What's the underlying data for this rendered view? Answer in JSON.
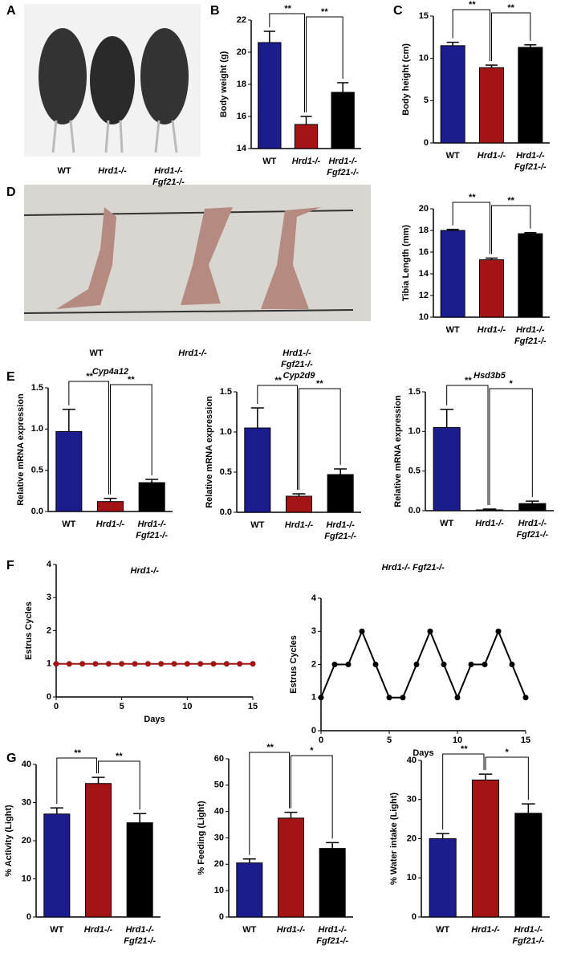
{
  "panel_labels": [
    "A",
    "B",
    "C",
    "D",
    "E",
    "F",
    "G"
  ],
  "photo_a": {
    "labels": [
      "WT",
      "Hrd1-/-",
      [
        "Hrd1-/-",
        "Fgf21-/-"
      ]
    ]
  },
  "photo_d": {
    "labels": [
      "WT",
      "Hrd1-/-",
      [
        "Hrd1-/-",
        "Fgf21-/-"
      ]
    ]
  },
  "chart_data": [
    {
      "type": "bar",
      "y_label": "Body weight  (g)",
      "categories": [
        "WT",
        "Hrd1-/-",
        [
          "Hrd1-/-",
          "Fgf21-/-"
        ]
      ],
      "values": [
        20.6,
        15.5,
        17.5
      ],
      "errors": [
        0.7,
        0.5,
        0.6
      ],
      "colors": [
        "#1c1c8f",
        "#a31515",
        "#000000"
      ],
      "ylim": [
        14,
        22
      ],
      "yticks": [
        14,
        16,
        18,
        20,
        22
      ],
      "significance": [
        "**",
        "**"
      ]
    },
    {
      "type": "bar",
      "y_label": "Body height (cm)",
      "categories": [
        "WT",
        "Hrd1-/-",
        [
          "Hrd1-/-",
          "Fgf21-/-"
        ]
      ],
      "values": [
        11.5,
        8.9,
        11.3
      ],
      "errors": [
        0.4,
        0.3,
        0.3
      ],
      "colors": [
        "#1c1c8f",
        "#a31515",
        "#000000"
      ],
      "ylim": [
        0,
        15
      ],
      "yticks": [
        0,
        5,
        10,
        15
      ],
      "significance": [
        "**",
        "**"
      ]
    },
    {
      "type": "bar",
      "y_label": "Tibia Length (mm)",
      "categories": [
        "WT",
        "Hrd1-/-",
        [
          "Hrd1-/-",
          "Fgf21-/-"
        ]
      ],
      "values": [
        18.0,
        15.3,
        17.7
      ],
      "errors": [
        0.1,
        0.15,
        0.1
      ],
      "colors": [
        "#1c1c8f",
        "#a31515",
        "#000000"
      ],
      "ylim": [
        10,
        20
      ],
      "yticks": [
        10,
        12,
        14,
        16,
        18,
        20
      ],
      "significance": [
        "**",
        "**"
      ]
    },
    {
      "type": "bar",
      "title": "Cyp4a12",
      "y_label": "Relative mRNA expression",
      "categories": [
        "WT",
        "Hrd1-/-",
        [
          "Hrd1-/-",
          "Fgf21-/-"
        ]
      ],
      "values": [
        0.97,
        0.12,
        0.35
      ],
      "errors": [
        0.27,
        0.04,
        0.04
      ],
      "colors": [
        "#1c1c8f",
        "#a31515",
        "#000000"
      ],
      "ylim": [
        0,
        1.5
      ],
      "yticks": [
        {
          "value": 0,
          "label": "0.0"
        },
        0.5,
        {
          "value": 1,
          "label": "1.0"
        },
        1.5
      ],
      "significance": [
        "**",
        "**"
      ]
    },
    {
      "type": "bar",
      "title": "Cyp2d9",
      "y_label": "Relative mRNA expression",
      "categories": [
        "WT",
        "Hrd1-/-",
        [
          "Hrd1-/-",
          "Fgf21-/-"
        ]
      ],
      "values": [
        1.05,
        0.2,
        0.47
      ],
      "errors": [
        0.25,
        0.03,
        0.07
      ],
      "colors": [
        "#1c1c8f",
        "#a31515",
        "#000000"
      ],
      "ylim": [
        0,
        1.5
      ],
      "yticks": [
        {
          "value": 0,
          "label": "0.0"
        },
        0.5,
        {
          "value": 1,
          "label": "1.0"
        },
        1.5
      ],
      "significance": [
        "**",
        "**"
      ]
    },
    {
      "type": "bar",
      "title": "Hsd3b5",
      "y_label": "Relative mRNA expression",
      "categories": [
        "WT",
        "Hrd1-/-",
        [
          "Hrd1-/-",
          "Fgf21-/-"
        ]
      ],
      "values": [
        1.05,
        0.01,
        0.09
      ],
      "errors": [
        0.23,
        0.01,
        0.03
      ],
      "colors": [
        "#1c1c8f",
        "#a31515",
        "#000000"
      ],
      "ylim": [
        0,
        1.5
      ],
      "yticks": [
        {
          "value": 0,
          "label": "0.0"
        },
        0.5,
        {
          "value": 1,
          "label": "1.0"
        },
        1.5
      ],
      "significance": [
        "**",
        "*"
      ]
    },
    {
      "type": "line",
      "title": "Hrd1-/-",
      "y_label": "Estrus Cycles",
      "x_label": "Days",
      "x": [
        0,
        1,
        2,
        3,
        4,
        5,
        6,
        7,
        8,
        9,
        10,
        11,
        12,
        13,
        14,
        15
      ],
      "values": [
        1,
        1,
        1,
        1,
        1,
        1,
        1,
        1,
        1,
        1,
        1,
        1,
        1,
        1,
        1,
        1
      ],
      "color": "#a31515",
      "xlim": [
        0,
        15
      ],
      "xticks": [
        0,
        5,
        10,
        15
      ],
      "ylim": [
        0,
        4
      ],
      "yticks": [
        0,
        1,
        2,
        3,
        4
      ]
    },
    {
      "type": "line",
      "title": "Hrd1-/- Fgf21-/-",
      "y_label": "Estrus Cycles",
      "x_label": "Days",
      "x": [
        0,
        1,
        2,
        3,
        4,
        5,
        6,
        7,
        8,
        9,
        10,
        11,
        12,
        13,
        14,
        15
      ],
      "values": [
        1,
        2,
        2,
        3,
        2,
        1,
        1,
        2,
        3,
        2,
        1,
        2,
        2,
        3,
        2,
        1
      ],
      "color": "#000000",
      "xlim": [
        0,
        15
      ],
      "xticks": [
        0,
        5,
        10,
        15
      ],
      "ylim": [
        0,
        4
      ],
      "yticks": [
        0,
        1,
        2,
        3,
        4
      ]
    },
    {
      "type": "bar",
      "y_label": "% Activity (Light)",
      "categories": [
        "WT",
        "Hrd1-/-",
        [
          "Hrd1-/-",
          "Fgf21-/-"
        ]
      ],
      "values": [
        27,
        35,
        24.7
      ],
      "errors": [
        1.6,
        1.6,
        2.4
      ],
      "colors": [
        "#1c1c8f",
        "#a31515",
        "#000000"
      ],
      "ylim": [
        0,
        40
      ],
      "yticks": [
        0,
        10,
        20,
        30,
        40
      ],
      "significance": [
        "**",
        "**"
      ]
    },
    {
      "type": "bar",
      "y_label": "% Feeding (Light)",
      "categories": [
        "WT",
        "Hrd1-/-",
        [
          "Hrd1-/-",
          "Fgf21-/-"
        ]
      ],
      "values": [
        20.5,
        37.5,
        26
      ],
      "errors": [
        1.5,
        2.2,
        2.2
      ],
      "colors": [
        "#1c1c8f",
        "#a31515",
        "#000000"
      ],
      "ylim": [
        0,
        60
      ],
      "yticks": [
        0,
        10,
        20,
        30,
        40,
        50,
        60
      ],
      "significance": [
        "**",
        "*"
      ]
    },
    {
      "type": "bar",
      "y_label": "% Water intake (Light)",
      "categories": [
        "WT",
        "Hrd1-/-",
        [
          "Hrd1-/-",
          "Fgf21-/-"
        ]
      ],
      "values": [
        20,
        35,
        26.5
      ],
      "errors": [
        1.3,
        1.5,
        2.4
      ],
      "colors": [
        "#1c1c8f",
        "#a31515",
        "#000000"
      ],
      "ylim": [
        0,
        40
      ],
      "yticks": [
        0,
        10,
        20,
        30,
        40
      ],
      "significance": [
        "**",
        "*"
      ]
    }
  ]
}
